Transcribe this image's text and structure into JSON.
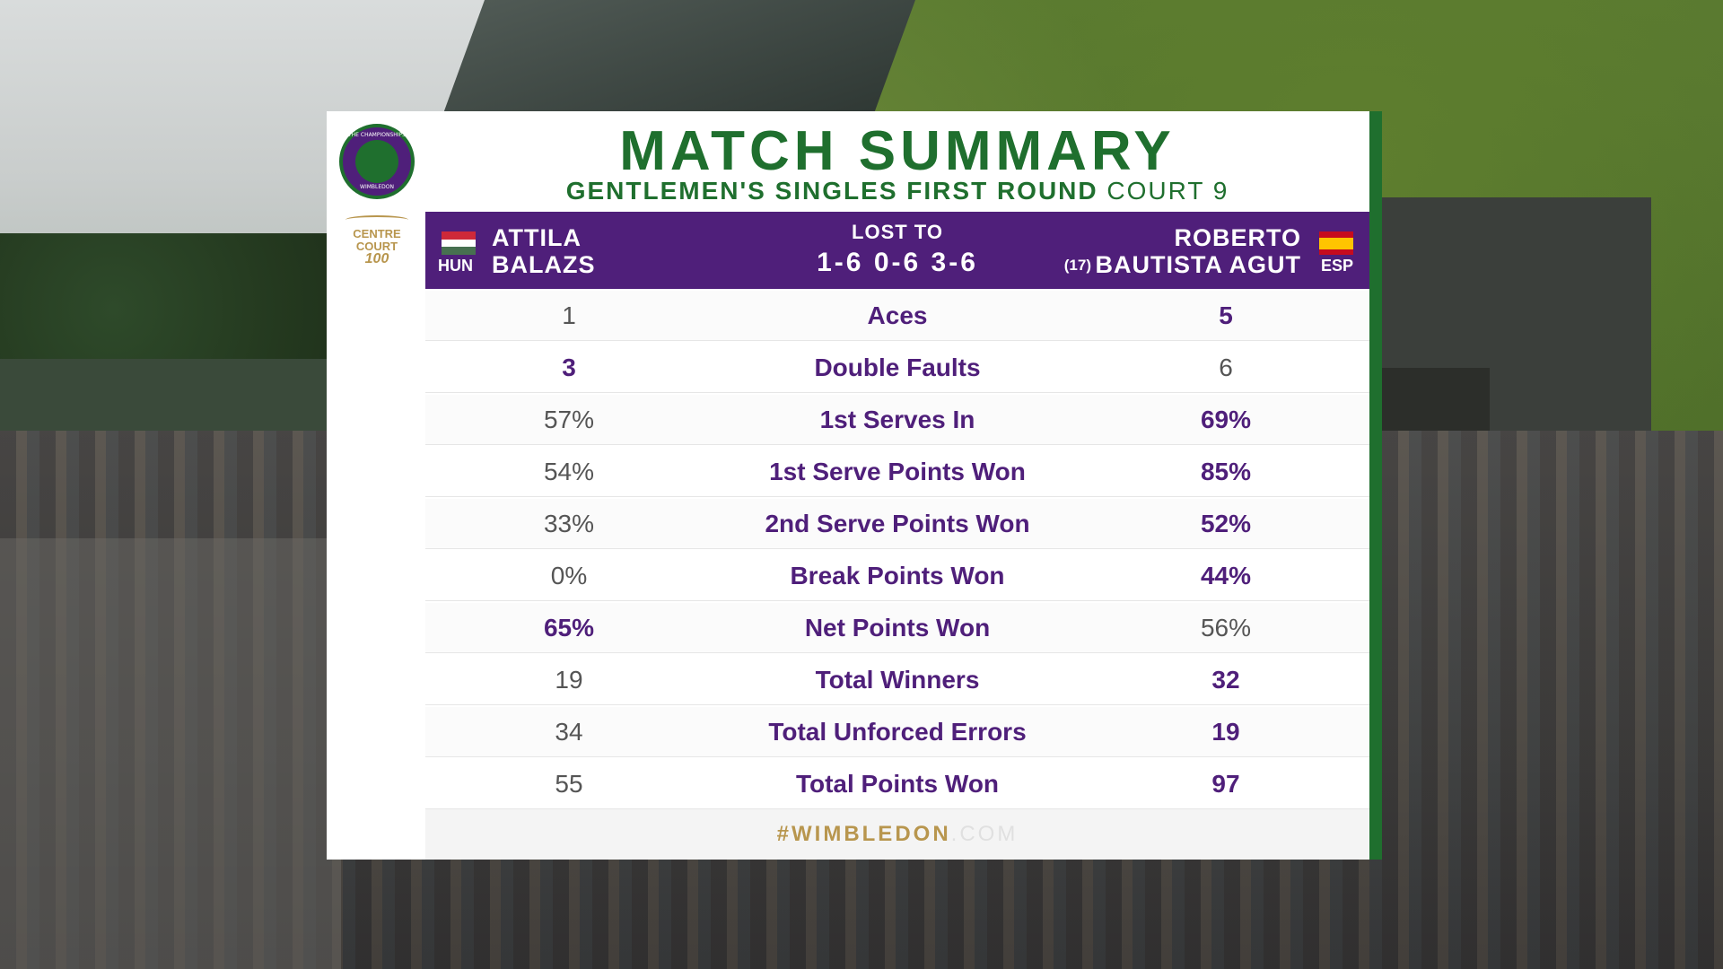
{
  "card": {
    "title": "MATCH SUMMARY",
    "round": "GENTLEMEN'S SINGLES FIRST ROUND",
    "court": "COURT 9",
    "logo_lines": [
      "THE CHAMPIONSHIPS",
      "WIMBLEDON"
    ],
    "centre_court_lines": [
      "CENTRE",
      "COURT",
      "100"
    ]
  },
  "match": {
    "result": "LOST TO",
    "score": "1-6 0-6 3-6",
    "player1": {
      "first": "ATTILA",
      "last": "BALAZS",
      "country": "HUN",
      "flag_colors": [
        "#ce2939",
        "#ffffff",
        "#477050"
      ]
    },
    "player2": {
      "first": "ROBERTO",
      "last": "BAUTISTA AGUT",
      "country": "ESP",
      "seed": "(17)",
      "flag_colors": [
        "#c60b1e",
        "#ffc400"
      ]
    }
  },
  "stats": [
    {
      "label": "Aces",
      "p1": "1",
      "p2": "5",
      "leader": "p2"
    },
    {
      "label": "Double Faults",
      "p1": "3",
      "p2": "6",
      "leader": "p1"
    },
    {
      "label": "1st Serves In",
      "p1": "57%",
      "p2": "69%",
      "leader": "p2"
    },
    {
      "label": "1st Serve Points Won",
      "p1": "54%",
      "p2": "85%",
      "leader": "p2"
    },
    {
      "label": "2nd Serve Points Won",
      "p1": "33%",
      "p2": "52%",
      "leader": "p2"
    },
    {
      "label": "Break Points Won",
      "p1": "0%",
      "p2": "44%",
      "leader": "p2"
    },
    {
      "label": "Net Points Won",
      "p1": "65%",
      "p2": "56%",
      "leader": "p1"
    },
    {
      "label": "Total Winners",
      "p1": "19",
      "p2": "32",
      "leader": "p2"
    },
    {
      "label": "Total Unforced Errors",
      "p1": "34",
      "p2": "19",
      "leader": "p2"
    },
    {
      "label": "Total Points Won",
      "p1": "55",
      "p2": "97",
      "leader": "p2"
    }
  ],
  "footer": {
    "hashtag": "#WIMBLEDON",
    "suffix": ".COM"
  },
  "colors": {
    "green": "#1f6f2e",
    "purple": "#4f1f7a",
    "gold": "#b8964e"
  }
}
